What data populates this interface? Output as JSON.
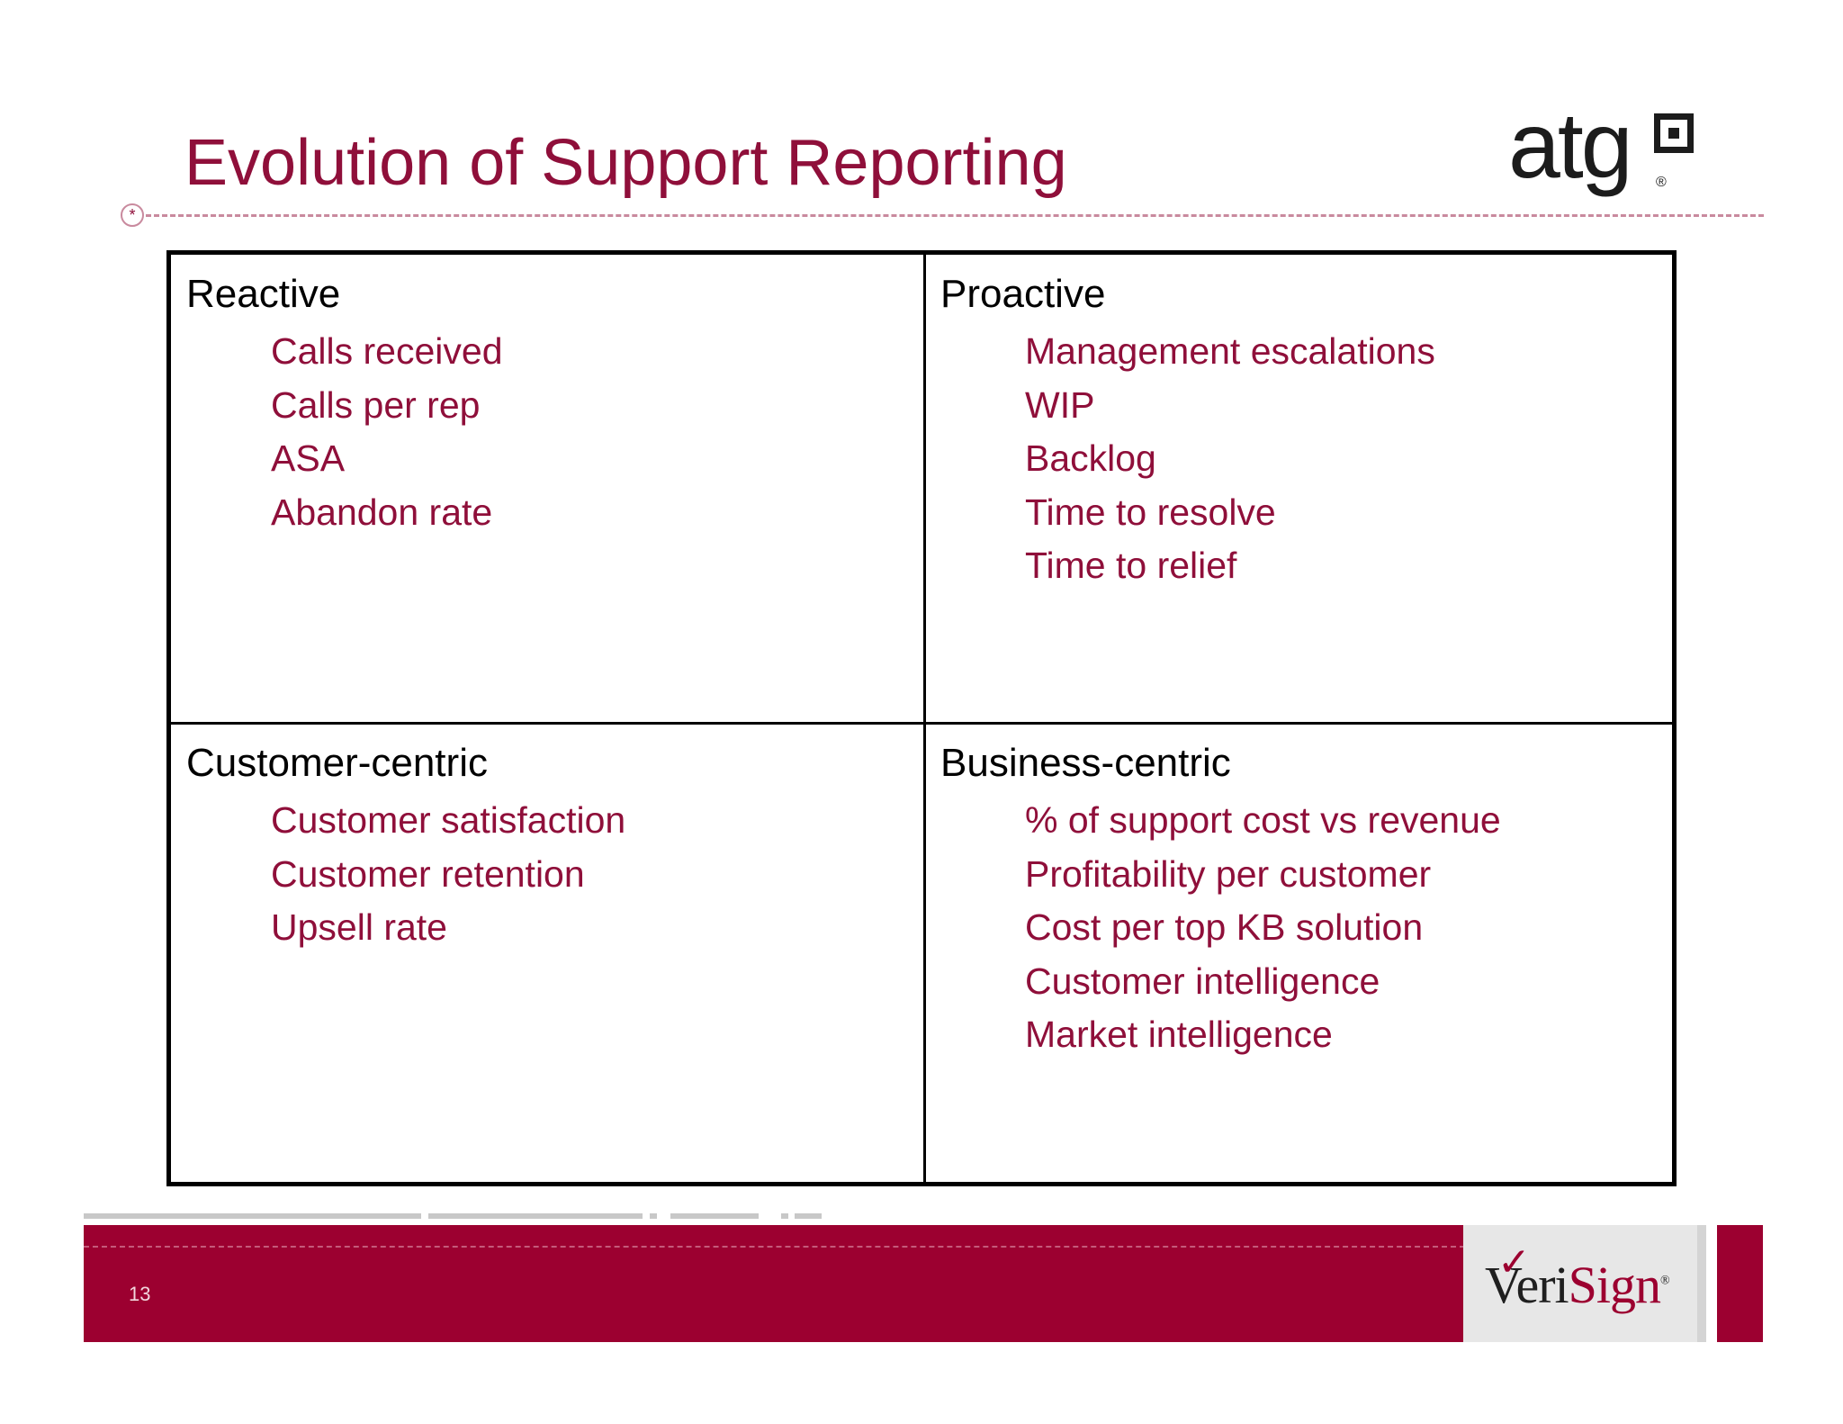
{
  "slide": {
    "title": "Evolution of Support Reporting",
    "page_number": "13"
  },
  "logos": {
    "atg": {
      "text": "atg",
      "reg": "®"
    },
    "verisign": {
      "text_left": "Veri",
      "text_right": "Sign",
      "reg": "®"
    }
  },
  "quadrants": [
    {
      "title": "Reactive",
      "items": [
        "Calls received",
        "Calls per rep",
        "ASA",
        "Abandon rate"
      ]
    },
    {
      "title": "Proactive",
      "items": [
        "Management escalations",
        "WIP",
        "Backlog",
        "Time to resolve",
        "Time to relief"
      ]
    },
    {
      "title": "Customer-centric",
      "items": [
        "Customer satisfaction",
        "Customer retention",
        "Upsell rate"
      ]
    },
    {
      "title": "Business-centric",
      "items": [
        "% of support cost vs revenue",
        "Profitability per customer",
        "Cost per top KB solution",
        "Customer intelligence",
        "Market intelligence"
      ]
    }
  ],
  "colors": {
    "accent": "#8f0f3a",
    "footer": "#9c0030",
    "border": "#000000"
  }
}
